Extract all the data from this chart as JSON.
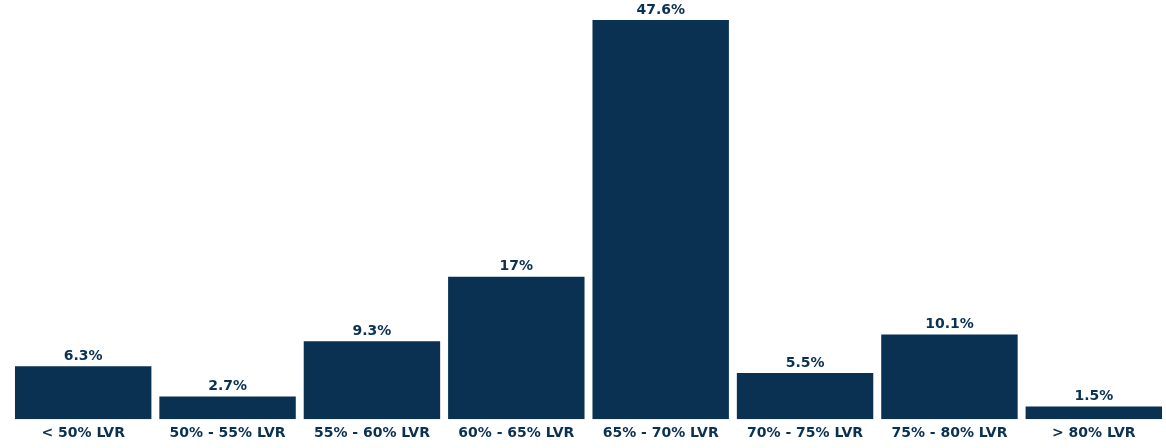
{
  "chart_data": {
    "type": "bar",
    "categories": [
      "< 50% LVR",
      "50% - 55% LVR",
      "55% - 60% LVR",
      "60% - 65% LVR",
      "65% - 70% LVR",
      "70% - 75% LVR",
      "75% - 80% LVR",
      "> 80% LVR"
    ],
    "values": [
      6.3,
      2.7,
      9.3,
      17,
      47.6,
      5.5,
      10.1,
      1.5
    ],
    "value_labels": [
      "6.3%",
      "2.7%",
      "9.3%",
      "17%",
      "47.6%",
      "5.5%",
      "10.1%",
      "1.5%"
    ],
    "color": "#0a3152",
    "relative": false,
    "grid": false,
    "legend": false
  }
}
